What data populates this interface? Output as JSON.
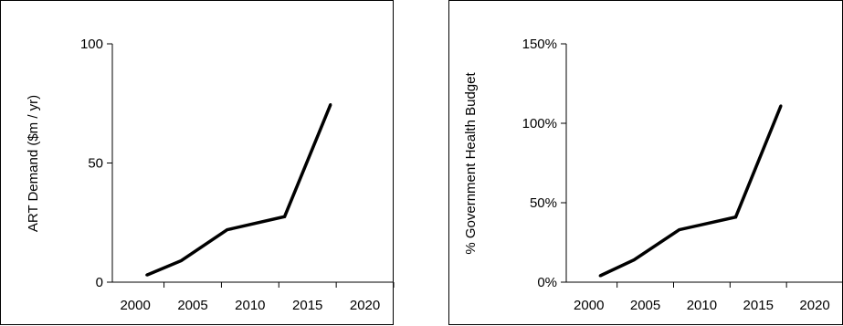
{
  "chart_data": [
    {
      "type": "line",
      "ylabel": "ART Demand ($m / yr)",
      "xlabel": "",
      "x": [
        2001,
        2004,
        2008,
        2013,
        2017
      ],
      "y": [
        3,
        9,
        22,
        27.5,
        74.5
      ],
      "ylim": [
        0,
        100
      ],
      "yticks": [
        0,
        50,
        100
      ],
      "ytick_labels": [
        "0",
        "50",
        "100"
      ],
      "xlim": [
        1998,
        2022.5
      ],
      "xticks": [
        2000,
        2005,
        2010,
        2015,
        2020
      ],
      "xtick_labels": [
        "2000",
        "2005",
        "2010",
        "2015",
        "2020"
      ],
      "grid": false,
      "legend": "none"
    },
    {
      "type": "line",
      "ylabel": "% Government Health Budget",
      "xlabel": "",
      "x": [
        2001,
        2004,
        2008,
        2013,
        2017
      ],
      "y": [
        4,
        14,
        33,
        41,
        111
      ],
      "ylim": [
        0,
        150
      ],
      "yticks": [
        0,
        50,
        100,
        150
      ],
      "ytick_labels": [
        "0%",
        "50%",
        "100%",
        "150%"
      ],
      "xlim": [
        1998,
        2022.5
      ],
      "xticks": [
        2000,
        2005,
        2010,
        2015,
        2020
      ],
      "xtick_labels": [
        "2000",
        "2005",
        "2010",
        "2015",
        "2020"
      ],
      "grid": false,
      "legend": "none"
    }
  ]
}
